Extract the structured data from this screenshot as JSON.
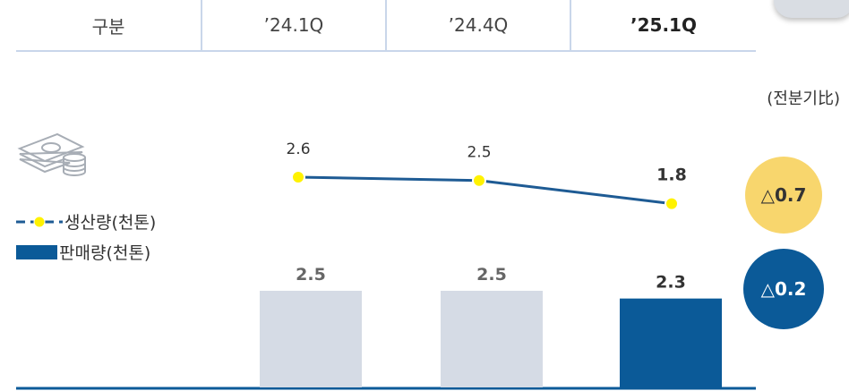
{
  "header": {
    "col0": "구분",
    "col1": "’24.1Q",
    "col2": "’24.4Q",
    "col3": "’25.1Q"
  },
  "unit_note": "(전분기比)",
  "legend": {
    "production": "생산량(천톤)",
    "sales": "판매량(천톤)"
  },
  "badges": {
    "production_change": "△0.7",
    "sales_change": "△0.2",
    "production_color": "#f8d66d",
    "sales_color": "#0b5a98"
  },
  "icons": {
    "money": "money-stack-icon"
  },
  "chart_data": {
    "type": "bar",
    "categories": [
      "’24.1Q",
      "’24.4Q",
      "’25.1Q"
    ],
    "series": [
      {
        "name": "판매량(천톤)",
        "kind": "bar",
        "values": [
          2.5,
          2.5,
          2.3
        ],
        "colors": [
          "#d5dbe5",
          "#d5dbe5",
          "#0b5a98"
        ]
      },
      {
        "name": "생산량(천톤)",
        "kind": "line",
        "values": [
          2.6,
          2.5,
          1.8
        ],
        "color": "#1e5b94",
        "marker": "#fff200"
      }
    ],
    "xlabel": "",
    "ylabel": ""
  }
}
